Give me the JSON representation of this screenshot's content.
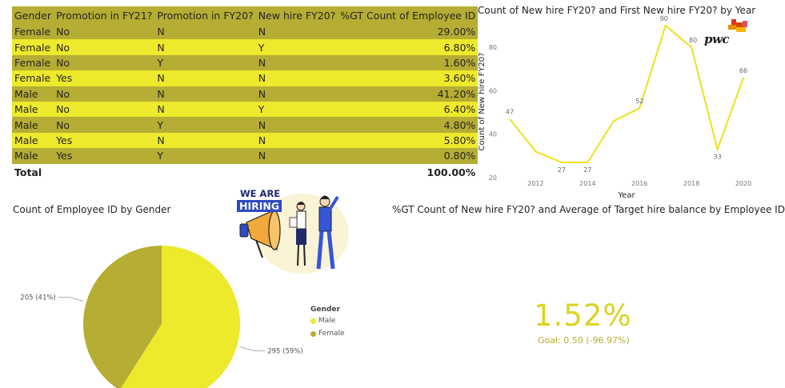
{
  "table": {
    "headers": [
      "Gender",
      "Promotion in FY21?",
      "Promotion in FY20?",
      "New hire FY20?",
      "%GT Count of Employee ID"
    ],
    "rows": [
      [
        "Female",
        "No",
        "N",
        "N",
        "29.00%"
      ],
      [
        "Female",
        "No",
        "N",
        "Y",
        "6.80%"
      ],
      [
        "Female",
        "No",
        "Y",
        "N",
        "1.60%"
      ],
      [
        "Female",
        "Yes",
        "N",
        "N",
        "3.60%"
      ],
      [
        "Male",
        "No",
        "N",
        "N",
        "41.20%"
      ],
      [
        "Male",
        "No",
        "N",
        "Y",
        "6.40%"
      ],
      [
        "Male",
        "No",
        "Y",
        "N",
        "4.80%"
      ],
      [
        "Male",
        "Yes",
        "N",
        "N",
        "5.80%"
      ],
      [
        "Male",
        "Yes",
        "Y",
        "N",
        "0.80%"
      ]
    ],
    "total_label": "Total",
    "total_value": "100.00%"
  },
  "line_title": "Count of New hire FY20? and First New hire FY20? by Year",
  "pie_title": "Count of Employee ID by Gender",
  "kpi_title": "%GT Count of New hire FY20? and Average of Target hire balance by Employee ID",
  "logo": {
    "text": "pwc",
    "name": "pwc-logo"
  },
  "hiring": {
    "line1": "WE ARE",
    "line2": "HIRING"
  },
  "kpi": {
    "value": "1.52%",
    "mark": "!",
    "goal": "Goal: 0.50 (-96.97%)"
  },
  "legend": {
    "title": "Gender",
    "items": [
      "Male",
      "Female"
    ]
  },
  "colors": {
    "yellow": "#ede92c",
    "olive": "#b5ad34",
    "line": "#ebe21f",
    "kpi": "#d9d423"
  },
  "chart_data": [
    {
      "type": "line",
      "title": "Count of New hire FY20? and First New hire FY20? by Year",
      "xlabel": "Year",
      "ylabel": "Count of New hire FY20?",
      "x": [
        2011,
        2012,
        2013,
        2014,
        2015,
        2016,
        2017,
        2018,
        2019,
        2020
      ],
      "series": [
        {
          "values": [
            47,
            32,
            27,
            27,
            46,
            52,
            90,
            80,
            33,
            66
          ]
        }
      ],
      "point_labels": [
        "47",
        "",
        "27",
        "27",
        "",
        "52",
        "90",
        "80",
        "33",
        "66"
      ],
      "x_ticks": [
        "2012",
        "2014",
        "2016",
        "2018",
        "2020"
      ],
      "y_ticks": [
        "20",
        "40",
        "60",
        "80"
      ],
      "xlim": [
        2011,
        2020
      ],
      "ylim": [
        20,
        90
      ],
      "grid": false
    },
    {
      "type": "pie",
      "title": "Count of Employee ID by Gender",
      "categories": [
        "Male",
        "Female"
      ],
      "values": [
        295,
        205
      ],
      "labels": [
        "295 (59%)",
        "205 (41%)"
      ],
      "legend_title": "Gender",
      "legend_position": "right"
    }
  ]
}
